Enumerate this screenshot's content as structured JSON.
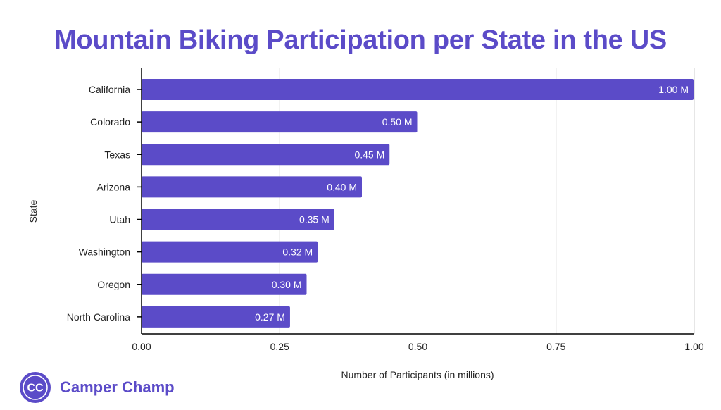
{
  "chart_data": {
    "type": "bar",
    "orientation": "horizontal",
    "title": "Mountain Biking Participation per State in the US",
    "xlabel": "Number of Participants (in millions)",
    "ylabel": "State",
    "categories": [
      "California",
      "Colorado",
      "Texas",
      "Arizona",
      "Utah",
      "Washington",
      "Oregon",
      "North Carolina"
    ],
    "values": [
      1.0,
      0.5,
      0.45,
      0.4,
      0.35,
      0.32,
      0.3,
      0.27
    ],
    "value_labels": [
      "1.00 M",
      "0.50 M",
      "0.45 M",
      "0.40 M",
      "0.35 M",
      "0.32 M",
      "0.30 M",
      "0.27 M"
    ],
    "xlim": [
      0,
      1.0
    ],
    "x_ticks": [
      0,
      0.25,
      0.5,
      0.75,
      1.0
    ],
    "x_tick_labels": [
      "0.00",
      "0.25",
      "0.50",
      "0.75",
      "1.00"
    ],
    "grid": true,
    "legend": "none",
    "colors": {
      "bar": "#5b4bc8",
      "title": "#5b4bc8",
      "grid": "#cccccc",
      "axis": "#000000"
    }
  },
  "brand": {
    "name": "Camper Champ",
    "logo_icon": "cc-monogram-icon",
    "logo_text": "CC"
  }
}
